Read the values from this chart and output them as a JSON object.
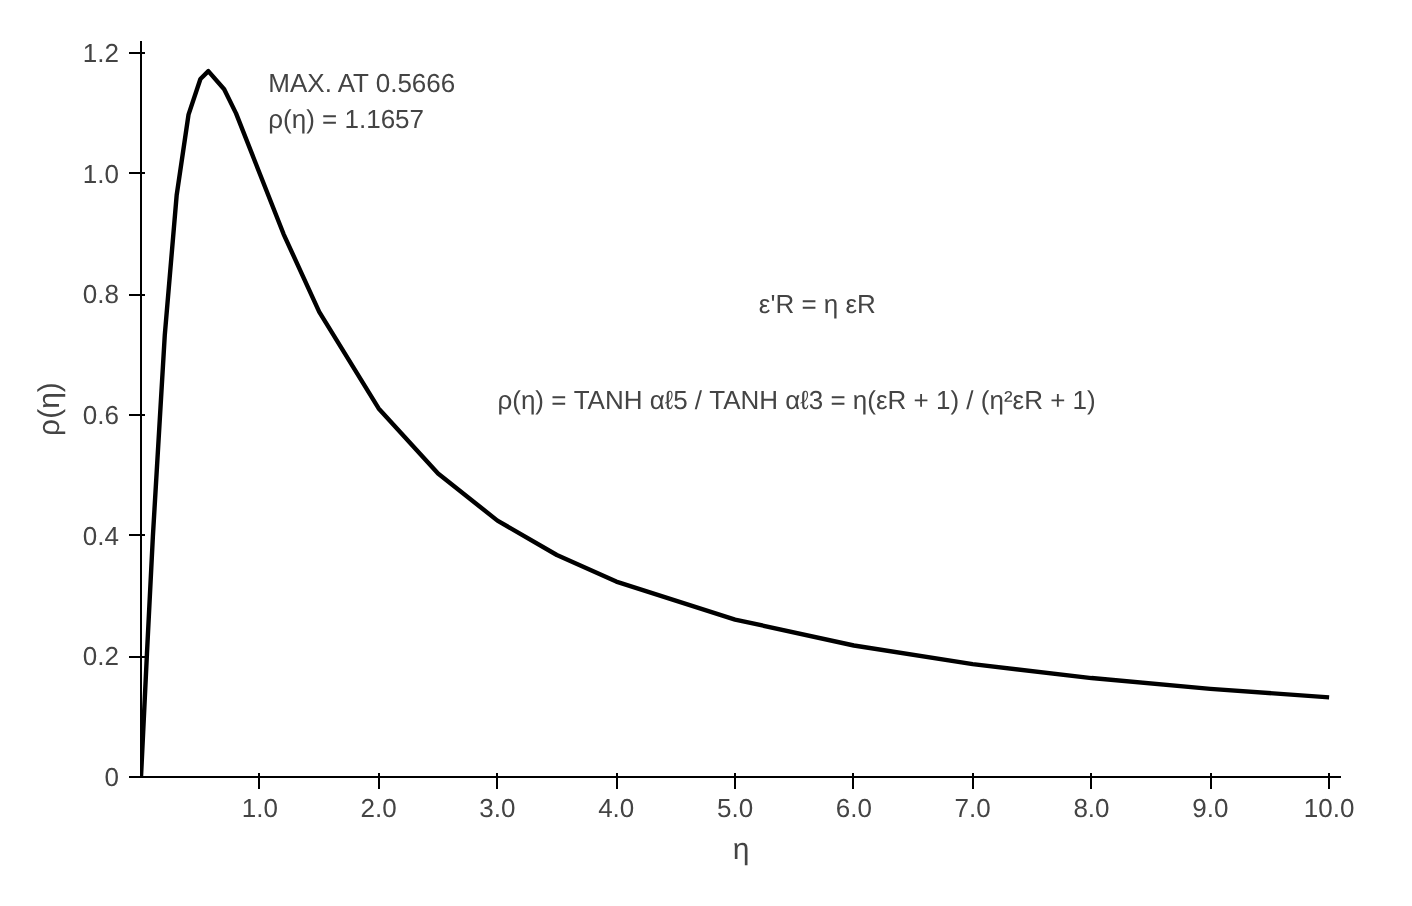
{
  "chart_data": {
    "type": "line",
    "xlabel": "η",
    "ylabel": "ρ(η)",
    "x": [
      0,
      0.05,
      0.1,
      0.2,
      0.3,
      0.4,
      0.5,
      0.5666,
      0.7,
      0.8,
      1.0,
      1.2,
      1.5,
      2.0,
      2.5,
      3.0,
      3.5,
      4.0,
      5.0,
      6.0,
      7.0,
      8.0,
      9.0,
      10.0
    ],
    "series": [
      {
        "color": "#000000",
        "values": [
          0,
          0.204,
          0.399,
          0.732,
          0.964,
          1.098,
          1.157,
          1.17,
          1.14,
          1.1,
          1.0,
          0.9,
          0.771,
          0.611,
          0.503,
          0.425,
          0.368,
          0.324,
          0.261,
          0.218,
          0.187,
          0.164,
          0.146,
          0.132
        ]
      }
    ],
    "xlim": [
      0,
      10.1
    ],
    "ylim": [
      0,
      1.22
    ],
    "xticks": [
      {
        "value": 1,
        "label": "1.0"
      },
      {
        "value": 2,
        "label": "2.0"
      },
      {
        "value": 3,
        "label": "3.0"
      },
      {
        "value": 4,
        "label": "4.0"
      },
      {
        "value": 5,
        "label": "5.0"
      },
      {
        "value": 6,
        "label": "6.0"
      },
      {
        "value": 7,
        "label": "7.0"
      },
      {
        "value": 8,
        "label": "8.0"
      },
      {
        "value": 9,
        "label": "9.0"
      },
      {
        "value": 10,
        "label": "10.0"
      }
    ],
    "yticks": [
      0,
      0.2,
      0.4,
      0.6,
      0.8,
      {
        "value": 1,
        "label": "1.0"
      },
      1.2
    ],
    "annotations": [
      {
        "text": "MAX. AT 0.5666",
        "x": 0.5666,
        "y": 1.1657
      },
      {
        "text": "ρ(η) = 1.1657",
        "x": 0.5666,
        "y": 1.1657
      },
      "ε'R = η εR",
      "ρ(η) = TANH αℓ5 / TANH αℓ3 = η(εR + 1) / (η²εR + 1)"
    ],
    "grid": false,
    "marker": "none",
    "line_style": "solid"
  }
}
